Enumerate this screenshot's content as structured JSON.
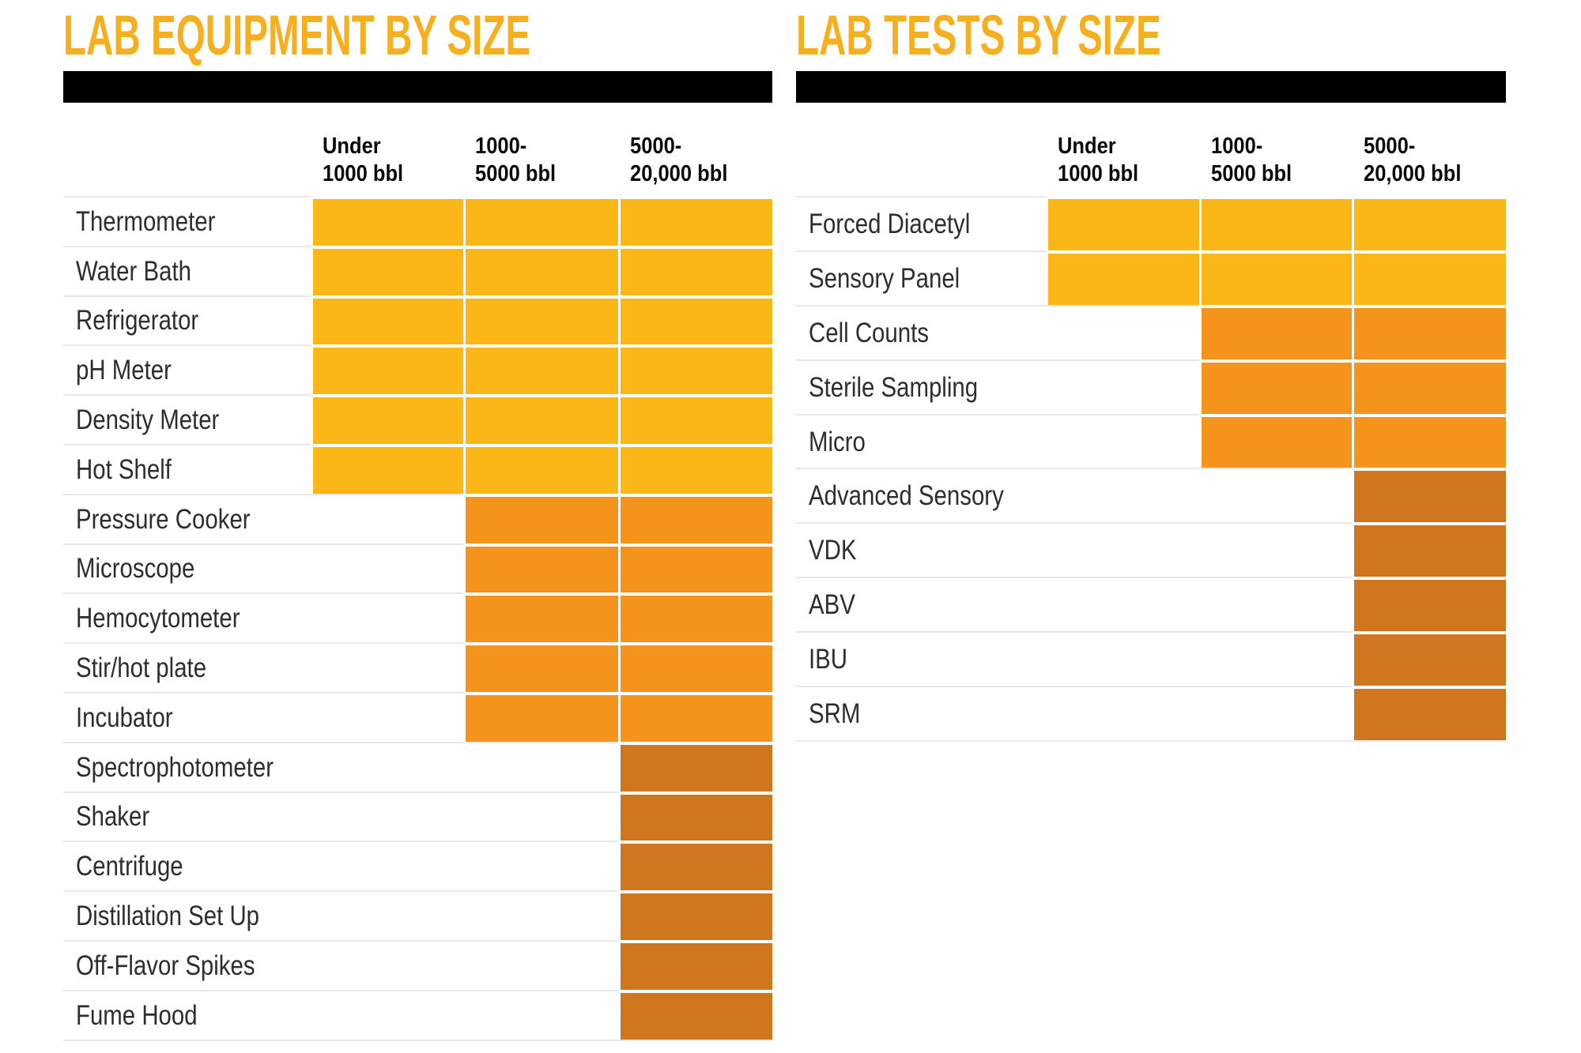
{
  "palette": {
    "title_gold": "#F6B01F",
    "tier_yellow": "#FBB718",
    "tier_orange": "#F5941D",
    "tier_dark_orange": "#CF761F",
    "bar_black": "#000000",
    "separator_gray": "#E8E8E8",
    "label_text": "#2D2D2D",
    "header_text": "#0A0A0A"
  },
  "tables": [
    {
      "title": "LAB EQUIPMENT BY SIZE",
      "columns": [
        "Under\n1000 bbl",
        "1000-\n5000 bbl",
        "5000-\n20,000 bbl"
      ],
      "rows": [
        {
          "label": "Thermometer",
          "cells": [
            "yellow",
            "yellow",
            "yellow"
          ]
        },
        {
          "label": "Water Bath",
          "cells": [
            "yellow",
            "yellow",
            "yellow"
          ]
        },
        {
          "label": "Refrigerator",
          "cells": [
            "yellow",
            "yellow",
            "yellow"
          ]
        },
        {
          "label": "pH Meter",
          "cells": [
            "yellow",
            "yellow",
            "yellow"
          ]
        },
        {
          "label": "Density Meter",
          "cells": [
            "yellow",
            "yellow",
            "yellow"
          ]
        },
        {
          "label": "Hot Shelf",
          "cells": [
            "yellow",
            "yellow",
            "yellow"
          ]
        },
        {
          "label": "Pressure Cooker",
          "cells": [
            "",
            "orange",
            "orange"
          ]
        },
        {
          "label": "Microscope",
          "cells": [
            "",
            "orange",
            "orange"
          ]
        },
        {
          "label": "Hemocytometer",
          "cells": [
            "",
            "orange",
            "orange"
          ]
        },
        {
          "label": "Stir/hot plate",
          "cells": [
            "",
            "orange",
            "orange"
          ]
        },
        {
          "label": "Incubator",
          "cells": [
            "",
            "orange",
            "orange"
          ]
        },
        {
          "label": "Spectrophotometer",
          "cells": [
            "",
            "",
            "dark"
          ]
        },
        {
          "label": "Shaker",
          "cells": [
            "",
            "",
            "dark"
          ]
        },
        {
          "label": "Centrifuge",
          "cells": [
            "",
            "",
            "dark"
          ]
        },
        {
          "label": "Distillation Set Up",
          "cells": [
            "",
            "",
            "dark"
          ]
        },
        {
          "label": "Off-Flavor Spikes",
          "cells": [
            "",
            "",
            "dark"
          ]
        },
        {
          "label": "Fume Hood",
          "cells": [
            "",
            "",
            "dark"
          ]
        }
      ]
    },
    {
      "title": "LAB TESTS BY SIZE",
      "columns": [
        "Under\n1000 bbl",
        "1000-\n5000 bbl",
        "5000-\n20,000 bbl"
      ],
      "rows": [
        {
          "label": "Forced Diacetyl",
          "cells": [
            "yellow",
            "yellow",
            "yellow"
          ]
        },
        {
          "label": "Sensory Panel",
          "cells": [
            "yellow",
            "yellow",
            "yellow"
          ]
        },
        {
          "label": "Cell Counts",
          "cells": [
            "",
            "orange",
            "orange"
          ]
        },
        {
          "label": "Sterile Sampling",
          "cells": [
            "",
            "orange",
            "orange"
          ]
        },
        {
          "label": "Micro",
          "cells": [
            "",
            "orange",
            "orange"
          ]
        },
        {
          "label": "Advanced Sensory",
          "cells": [
            "",
            "",
            "dark"
          ]
        },
        {
          "label": "VDK",
          "cells": [
            "",
            "",
            "dark"
          ]
        },
        {
          "label": "ABV",
          "cells": [
            "",
            "",
            "dark"
          ]
        },
        {
          "label": "IBU",
          "cells": [
            "",
            "",
            "dark"
          ]
        },
        {
          "label": "SRM",
          "cells": [
            "",
            "",
            "dark"
          ]
        }
      ]
    }
  ],
  "chart_data": [
    {
      "type": "heatmap",
      "title": "LAB EQUIPMENT BY SIZE",
      "columns": [
        "Under 1000 bbl",
        "1000-5000 bbl",
        "5000-20,000 bbl"
      ],
      "rows": [
        "Thermometer",
        "Water Bath",
        "Refrigerator",
        "pH Meter",
        "Density Meter",
        "Hot Shelf",
        "Pressure Cooker",
        "Microscope",
        "Hemocytometer",
        "Stir/hot plate",
        "Incubator",
        "Spectrophotometer",
        "Shaker",
        "Centrifuge",
        "Distillation Set Up",
        "Off-Flavor Spikes",
        "Fume Hood"
      ],
      "values": [
        [
          1,
          1,
          1
        ],
        [
          1,
          1,
          1
        ],
        [
          1,
          1,
          1
        ],
        [
          1,
          1,
          1
        ],
        [
          1,
          1,
          1
        ],
        [
          1,
          1,
          1
        ],
        [
          0,
          1,
          1
        ],
        [
          0,
          1,
          1
        ],
        [
          0,
          1,
          1
        ],
        [
          0,
          1,
          1
        ],
        [
          0,
          1,
          1
        ],
        [
          0,
          0,
          1
        ],
        [
          0,
          0,
          1
        ],
        [
          0,
          0,
          1
        ],
        [
          0,
          0,
          1
        ],
        [
          0,
          0,
          1
        ],
        [
          0,
          0,
          1
        ]
      ],
      "cell_colors": {
        "rows_1_6": "#FBB718",
        "rows_7_11": "#F5941D",
        "rows_12_17": "#CF761F"
      },
      "legend_position": "none",
      "grid": "light-gray row separators, white gaps between filled cells"
    },
    {
      "type": "heatmap",
      "title": "LAB TESTS BY SIZE",
      "columns": [
        "Under 1000 bbl",
        "1000-5000 bbl",
        "5000-20,000 bbl"
      ],
      "rows": [
        "Forced Diacetyl",
        "Sensory Panel",
        "Cell Counts",
        "Sterile Sampling",
        "Micro",
        "Advanced Sensory",
        "VDK",
        "ABV",
        "IBU",
        "SRM"
      ],
      "values": [
        [
          1,
          1,
          1
        ],
        [
          1,
          1,
          1
        ],
        [
          0,
          1,
          1
        ],
        [
          0,
          1,
          1
        ],
        [
          0,
          1,
          1
        ],
        [
          0,
          0,
          1
        ],
        [
          0,
          0,
          1
        ],
        [
          0,
          0,
          1
        ],
        [
          0,
          0,
          1
        ],
        [
          0,
          0,
          1
        ]
      ],
      "cell_colors": {
        "rows_1_2": "#FBB718",
        "rows_3_5": "#F5941D",
        "rows_6_10": "#CF761F"
      },
      "legend_position": "none",
      "grid": "light-gray row separators, white gaps between filled cells"
    }
  ]
}
